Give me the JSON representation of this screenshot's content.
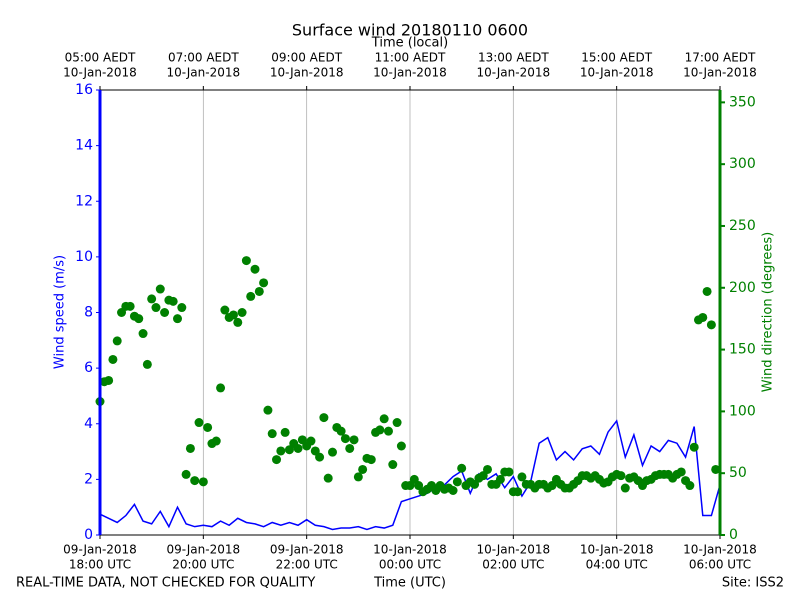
{
  "chart_data": {
    "type": "line",
    "title": "Surface wind 20180110 0600",
    "x2label": "Time (local)",
    "xlabel": "Time (UTC)",
    "ylabel": "Wind speed (m/s)",
    "y2label": "Wind direction (degrees)",
    "footer_left": "REAL-TIME DATA, NOT CHECKED FOR QUALITY",
    "footer_right": "Site: ISS2",
    "xlim": [
      0,
      720
    ],
    "xticks": [
      {
        "value": 0,
        "label": [
          "09-Jan-2018",
          "18:00 UTC"
        ]
      },
      {
        "value": 120,
        "label": [
          "09-Jan-2018",
          "20:00 UTC"
        ]
      },
      {
        "value": 240,
        "label": [
          "09-Jan-2018",
          "22:00 UTC"
        ]
      },
      {
        "value": 360,
        "label": [
          "10-Jan-2018",
          "00:00 UTC"
        ]
      },
      {
        "value": 480,
        "label": [
          "10-Jan-2018",
          "02:00 UTC"
        ]
      },
      {
        "value": 600,
        "label": [
          "10-Jan-2018",
          "04:00 UTC"
        ]
      },
      {
        "value": 720,
        "label": [
          "10-Jan-2018",
          "06:00 UTC"
        ]
      }
    ],
    "x2ticks": [
      {
        "value": 0,
        "label": [
          "05:00 AEDT",
          "10-Jan-2018"
        ]
      },
      {
        "value": 120,
        "label": [
          "07:00 AEDT",
          "10-Jan-2018"
        ]
      },
      {
        "value": 240,
        "label": [
          "09:00 AEDT",
          "10-Jan-2018"
        ]
      },
      {
        "value": 360,
        "label": [
          "11:00 AEDT",
          "10-Jan-2018"
        ]
      },
      {
        "value": 480,
        "label": [
          "13:00 AEDT",
          "10-Jan-2018"
        ]
      },
      {
        "value": 600,
        "label": [
          "15:00 AEDT",
          "10-Jan-2018"
        ]
      },
      {
        "value": 720,
        "label": [
          "17:00 AEDT",
          "10-Jan-2018"
        ]
      }
    ],
    "ylim": [
      0,
      16
    ],
    "yticks": [
      0,
      2,
      4,
      6,
      8,
      10,
      12,
      14,
      16
    ],
    "y2lim": [
      0,
      360
    ],
    "y2ticks": [
      0,
      50,
      100,
      150,
      200,
      250,
      300,
      350
    ],
    "ycolor": "#0000ff",
    "y2color": "#008000",
    "xgrid": true,
    "series": [
      {
        "type": "line",
        "color": "#0000ff",
        "x": [
          0,
          10,
          20,
          30,
          40,
          50,
          60,
          70,
          80,
          90,
          100,
          110,
          120,
          130,
          140,
          150,
          160,
          170,
          180,
          190,
          200,
          210,
          220,
          230,
          240,
          250,
          260,
          270,
          280,
          290,
          300,
          310,
          320,
          330,
          340,
          350,
          360,
          370,
          380,
          390,
          400,
          410,
          420,
          430,
          440,
          450,
          460,
          470,
          480,
          490,
          500,
          510,
          520,
          530,
          540,
          550,
          560,
          570,
          580,
          590,
          600,
          610,
          620,
          630,
          640,
          650,
          660,
          670,
          680,
          690,
          700,
          710,
          720
        ],
        "values": [
          0.75,
          0.6,
          0.45,
          0.7,
          1.1,
          0.5,
          0.4,
          0.85,
          0.3,
          1.0,
          0.4,
          0.3,
          0.35,
          0.3,
          0.5,
          0.35,
          0.6,
          0.45,
          0.4,
          0.3,
          0.45,
          0.35,
          0.45,
          0.35,
          0.55,
          0.35,
          0.3,
          0.2,
          0.25,
          0.25,
          0.3,
          0.2,
          0.3,
          0.25,
          0.35,
          1.2,
          1.3,
          1.4,
          1.5,
          1.7,
          1.8,
          2.1,
          2.3,
          1.5,
          2.2,
          2.0,
          2.2,
          1.7,
          2.1,
          1.4,
          1.9,
          3.3,
          3.5,
          2.7,
          3.0,
          2.7,
          3.1,
          3.2,
          2.9,
          3.7,
          4.1,
          2.8,
          3.6,
          2.5,
          3.2,
          3.0,
          3.4,
          3.3,
          2.8,
          3.9,
          0.7,
          0.7,
          1.8
        ]
      },
      {
        "type": "scatter",
        "color": "#008000",
        "axis": "y2",
        "x": [
          0,
          5,
          10,
          15,
          20,
          25,
          30,
          35,
          40,
          45,
          50,
          55,
          60,
          65,
          70,
          75,
          80,
          85,
          90,
          95,
          100,
          105,
          110,
          115,
          120,
          125,
          130,
          135,
          140,
          145,
          150,
          155,
          160,
          165,
          170,
          175,
          180,
          185,
          190,
          195,
          200,
          205,
          210,
          215,
          220,
          225,
          230,
          235,
          240,
          245,
          250,
          255,
          260,
          265,
          270,
          275,
          280,
          285,
          290,
          295,
          300,
          305,
          310,
          315,
          320,
          325,
          330,
          335,
          340,
          345,
          350,
          355,
          360,
          365,
          370,
          375,
          380,
          385,
          390,
          395,
          400,
          405,
          410,
          415,
          420,
          425,
          430,
          435,
          440,
          445,
          450,
          455,
          460,
          465,
          470,
          475,
          480,
          485,
          490,
          495,
          500,
          505,
          510,
          515,
          520,
          525,
          530,
          535,
          540,
          545,
          550,
          555,
          560,
          565,
          570,
          575,
          580,
          585,
          590,
          595,
          600,
          605,
          610,
          615,
          620,
          625,
          630,
          635,
          640,
          645,
          650,
          655,
          660,
          665,
          670,
          675,
          680,
          685,
          690,
          695,
          700,
          705,
          710,
          715
        ],
        "values": [
          108,
          124,
          125,
          142,
          157,
          180,
          185,
          185,
          177,
          175,
          163,
          138,
          191,
          184,
          199,
          180,
          190,
          189,
          175,
          184,
          49,
          70,
          44,
          91,
          43,
          87,
          74,
          76,
          119,
          182,
          176,
          178,
          172,
          180,
          222,
          193,
          215,
          197,
          204,
          101,
          82,
          61,
          68,
          83,
          69,
          74,
          70,
          77,
          72,
          76,
          68,
          63,
          95,
          46,
          67,
          87,
          84,
          78,
          70,
          77,
          47,
          53,
          62,
          61,
          83,
          85,
          94,
          84,
          57,
          91,
          72,
          40,
          40,
          45,
          40,
          35,
          37,
          40,
          36,
          40,
          37,
          38,
          36,
          43,
          54,
          40,
          43,
          41,
          46,
          48,
          53,
          41,
          41,
          45,
          51,
          51,
          35,
          35,
          47,
          41,
          41,
          38,
          41,
          41,
          38,
          40,
          45,
          41,
          38,
          38,
          41,
          44,
          48,
          48,
          46,
          48,
          45,
          42,
          43,
          47,
          49,
          48,
          38,
          46,
          47,
          44,
          40,
          44,
          45,
          48,
          49,
          49,
          49,
          46,
          49,
          51,
          44,
          40,
          71,
          174,
          176,
          197,
          170,
          53
        ]
      }
    ]
  }
}
